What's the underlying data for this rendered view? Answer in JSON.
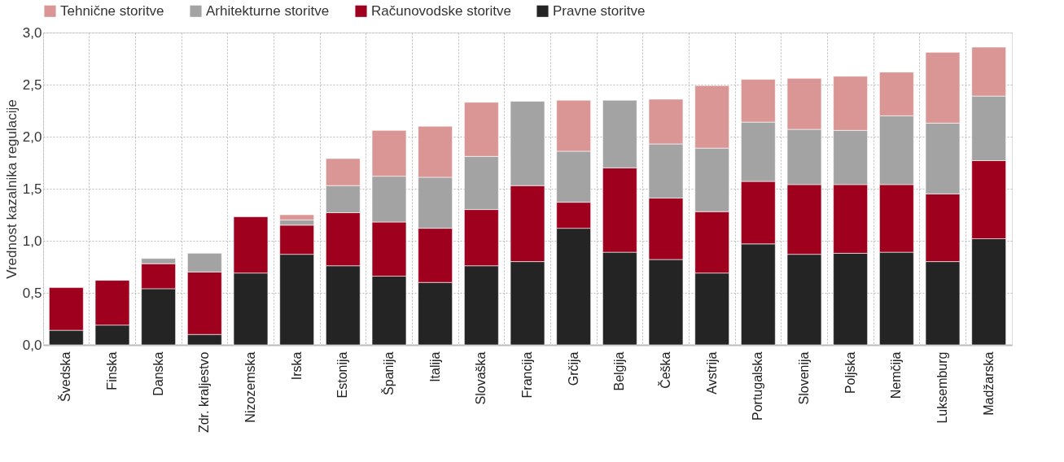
{
  "chart_data": {
    "type": "bar",
    "stacked": true,
    "ylabel": "Vrednost kazalnika regulacije",
    "categories": [
      "Švedska",
      "Finska",
      "Danska",
      "Zdr. kraljestvo",
      "Nizozemska",
      "Irska",
      "Estonija",
      "Španija",
      "Italija",
      "Slovaška",
      "Francija",
      "Grčija",
      "Belgija",
      "Češka",
      "Avstrija",
      "Portugalska",
      "Slovenija",
      "Poljska",
      "Nemčija",
      "Luksemburg",
      "Madžarska"
    ],
    "series": [
      {
        "name": "Pravne storitve",
        "color": "#242424",
        "values": [
          0.14,
          0.19,
          0.54,
          0.1,
          0.69,
          0.87,
          0.76,
          0.66,
          0.6,
          0.76,
          0.8,
          1.12,
          0.89,
          0.82,
          0.69,
          0.97,
          0.87,
          0.88,
          0.89,
          0.8,
          1.02
        ]
      },
      {
        "name": "Računovodske storitve",
        "color": "#9e001e",
        "values": [
          0.41,
          0.43,
          0.24,
          0.6,
          0.54,
          0.28,
          0.51,
          0.52,
          0.52,
          0.54,
          0.73,
          0.25,
          0.81,
          0.59,
          0.59,
          0.6,
          0.67,
          0.66,
          0.65,
          0.65,
          0.75
        ]
      },
      {
        "name": "Arhitekturne storitve",
        "color": "#a3a3a3",
        "values": [
          null,
          null,
          0.05,
          0.18,
          null,
          0.05,
          0.26,
          0.44,
          0.49,
          0.51,
          0.81,
          0.49,
          0.65,
          0.52,
          0.61,
          0.57,
          0.53,
          0.52,
          0.66,
          0.68,
          0.62
        ]
      },
      {
        "name": "Tehnične storitve",
        "color": "#d99694",
        "values": [
          null,
          null,
          null,
          null,
          null,
          0.05,
          0.26,
          0.44,
          0.49,
          0.52,
          null,
          0.49,
          null,
          0.43,
          0.6,
          0.41,
          0.49,
          0.52,
          0.42,
          0.68,
          0.47
        ]
      }
    ],
    "ylim": [
      0,
      3
    ],
    "yticks": [
      {
        "value": 0,
        "label": "0,0"
      },
      {
        "value": 0.5,
        "label": "0,5"
      },
      {
        "value": 1,
        "label": "1,0"
      },
      {
        "value": 1.5,
        "label": "1,5"
      },
      {
        "value": 2,
        "label": "2,0"
      },
      {
        "value": 2.5,
        "label": "2,5"
      },
      {
        "value": 3,
        "label": "3,0"
      }
    ],
    "grid": true,
    "legend": "top"
  }
}
